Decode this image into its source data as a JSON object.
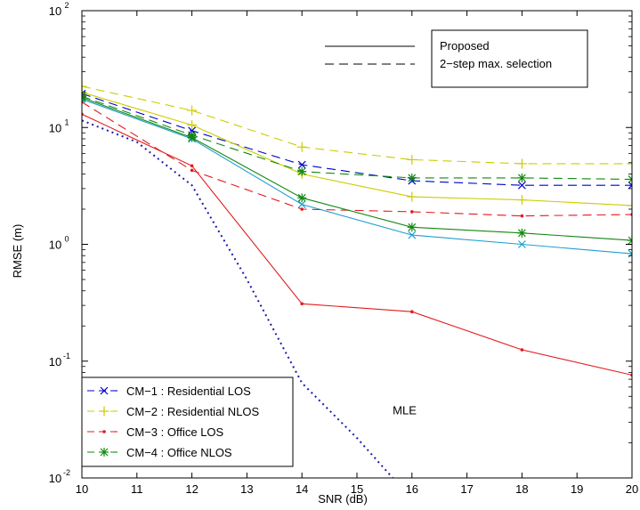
{
  "chart_data": {
    "type": "line",
    "xlabel": "SNR (dB)",
    "ylabel": "RMSE (m)",
    "xlim": [
      10,
      20
    ],
    "ylim": [
      0.01,
      100
    ],
    "yscale": "log",
    "x_ticks": [
      "10",
      "11",
      "12",
      "13",
      "14",
      "15",
      "16",
      "17",
      "18",
      "19",
      "20"
    ],
    "y_ticks": [
      {
        "base": "10",
        "exp": "-2",
        "value": 0.01
      },
      {
        "base": "10",
        "exp": "-1",
        "value": 0.1
      },
      {
        "base": "10",
        "exp": "0",
        "value": 1
      },
      {
        "base": "10",
        "exp": "1",
        "value": 10
      },
      {
        "base": "10",
        "exp": "2",
        "value": 100
      }
    ],
    "style_legend": {
      "entries": [
        {
          "label": "Proposed",
          "dash": "solid"
        },
        {
          "label": "2−step max. selection",
          "dash": "dashed"
        }
      ],
      "placement": "top-right"
    },
    "legend": {
      "placement": "bottom-left",
      "entries": [
        {
          "label": "CM−1 : Residential LOS",
          "color": "#0000cc",
          "marker": "x"
        },
        {
          "label": "CM−2 : Residential NLOS",
          "color": "#cccc00",
          "marker": "+"
        },
        {
          "label": "CM−3 : Office LOS",
          "color": "#e31a1c",
          "marker": "dot"
        },
        {
          "label": "CM−4 : Office NLOS",
          "color": "#118811",
          "marker": "star"
        }
      ]
    },
    "annotation": {
      "text": "MLE",
      "x": 15.65,
      "y": 0.035
    },
    "series": [
      {
        "color": "#0000cc",
        "marker": "x",
        "dash": "dashed",
        "x": [
          10,
          12,
          14,
          16,
          18,
          20
        ],
        "y": [
          19.5,
          9.4,
          4.8,
          3.5,
          3.2,
          3.2
        ]
      },
      {
        "color": "#1f9fd0",
        "marker": "x",
        "dash": "solid",
        "x": [
          10,
          12,
          14,
          16,
          18,
          20
        ],
        "y": [
          17.5,
          8.0,
          2.2,
          1.2,
          1.0,
          0.83
        ]
      },
      {
        "color": "#cccc00",
        "marker": "+",
        "dash": "dashed",
        "x": [
          10,
          12,
          14,
          16,
          18,
          20
        ],
        "y": [
          22.5,
          14.0,
          6.8,
          5.3,
          4.9,
          4.9
        ]
      },
      {
        "color": "#cccc00",
        "marker": "+",
        "dash": "solid",
        "x": [
          10,
          12,
          14,
          16,
          18,
          20
        ],
        "y": [
          20.0,
          10.5,
          4.0,
          2.55,
          2.4,
          2.15
        ]
      },
      {
        "color": "#e31a1c",
        "marker": "dot",
        "dash": "dashed",
        "x": [
          10,
          12,
          14,
          16,
          18,
          20
        ],
        "y": [
          16.5,
          4.3,
          2.0,
          1.9,
          1.75,
          1.8
        ]
      },
      {
        "color": "#e31a1c",
        "marker": "dot",
        "dash": "solid",
        "x": [
          10,
          12,
          14,
          16,
          18,
          20
        ],
        "y": [
          13.0,
          4.7,
          0.31,
          0.265,
          0.125,
          0.076
        ]
      },
      {
        "color": "#118811",
        "marker": "star",
        "dash": "dashed",
        "x": [
          10,
          12,
          14,
          16,
          18,
          20
        ],
        "y": [
          18.5,
          8.6,
          4.2,
          3.7,
          3.7,
          3.6
        ]
      },
      {
        "color": "#118811",
        "marker": "star",
        "dash": "solid",
        "x": [
          10,
          12,
          14,
          16,
          18,
          20
        ],
        "y": [
          18.0,
          8.2,
          2.5,
          1.4,
          1.25,
          1.08
        ]
      },
      {
        "color": "#1a1aaa",
        "marker": "none",
        "dash": "dotted",
        "x": [
          10,
          11,
          12,
          13,
          14,
          15,
          15.65
        ],
        "y": [
          11.5,
          7.5,
          3.2,
          0.5,
          0.065,
          0.022,
          0.01
        ]
      }
    ]
  }
}
